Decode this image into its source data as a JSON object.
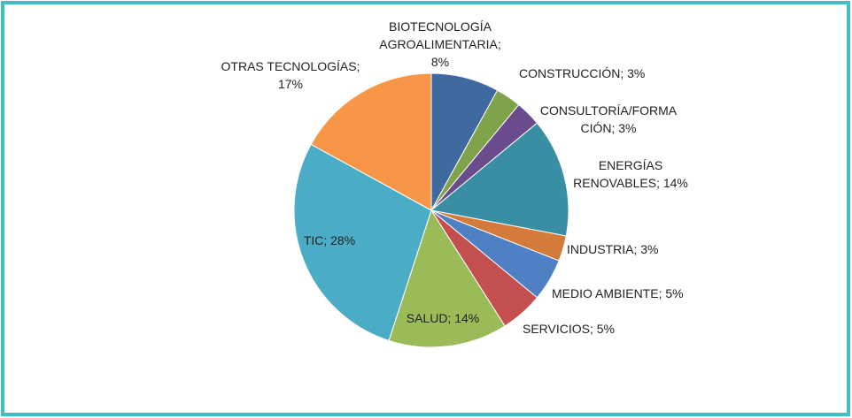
{
  "chart_data": {
    "type": "pie",
    "labels": [
      "BIOTECNOLOGÍA AGROALIMENTARIA; 8%",
      "CONSTRUCCIÓN; 3%",
      "CONSULTORÍA/FORMACIÓN; 3%",
      "ENERGÍAS RENOVABLES; 14%",
      "INDUSTRIA; 3%",
      "MEDIO AMBIENTE; 5%",
      "SERVICIOS; 5%",
      "SALUD; 14%",
      "TIC; 28%",
      "OTRAS TECNOLOGÍAS; 17%"
    ],
    "values": [
      8,
      3,
      3,
      14,
      3,
      5,
      5,
      14,
      28,
      17
    ],
    "colors": [
      "#3e6aa0",
      "#7fa24a",
      "#6a4c8c",
      "#3a8ea3",
      "#d47a3a",
      "#4f80c4",
      "#c44f4f",
      "#9bbb59",
      "#4bacc6",
      "#f79646"
    ]
  }
}
